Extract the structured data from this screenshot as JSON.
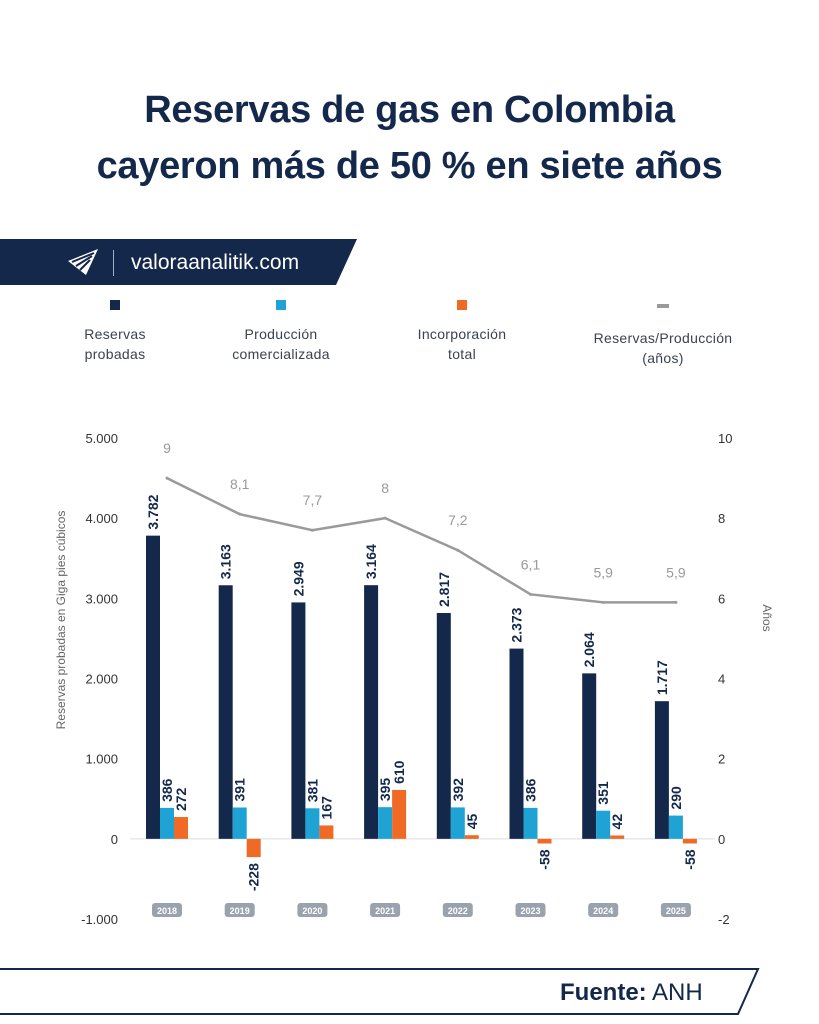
{
  "title": {
    "line1": "Reservas de gas en Colombia",
    "line2": "cayeron más de 50 % en siete años"
  },
  "brand": {
    "text": "valoraanalitik.com",
    "icon": "paper-plane-logo-icon"
  },
  "source": {
    "label": "Fuente:",
    "value": "ANH"
  },
  "colors": {
    "reservas": "#13284a",
    "produccion": "#1fa3d4",
    "incorporacion": "#ef6a24",
    "ratio": "#9a9a9a",
    "title": "#13284a"
  },
  "legend": [
    {
      "key": "reservas",
      "line1": "Reservas",
      "line2": "probadas"
    },
    {
      "key": "produccion",
      "line1": "Producción",
      "line2": "comercializada"
    },
    {
      "key": "incorporacion",
      "line1": "Incorporación",
      "line2": "total"
    },
    {
      "key": "ratio",
      "line1": "Reservas/Producción",
      "line2": "(años)"
    }
  ],
  "chart_data": {
    "type": "bar",
    "categories": [
      "2018",
      "2019",
      "2020",
      "2021",
      "2022",
      "2023",
      "2024",
      "2025"
    ],
    "series": [
      {
        "name": "Reservas probadas",
        "values": [
          3782,
          3163,
          2949,
          3164,
          2817,
          2373,
          2064,
          1717
        ],
        "labels": [
          "3.782",
          "3.163",
          "2.949",
          "3.164",
          "2.817",
          "2.373",
          "2.064",
          "1.717"
        ]
      },
      {
        "name": "Producción comercializada",
        "values": [
          386,
          391,
          381,
          395,
          392,
          386,
          351,
          290
        ],
        "labels": [
          "386",
          "391",
          "381",
          "395",
          "392",
          "386",
          "351",
          "290"
        ]
      },
      {
        "name": "Incorporación total",
        "values": [
          272,
          -228,
          167,
          610,
          45,
          -58,
          42,
          -58
        ],
        "labels": [
          "272",
          "-228",
          "167",
          "610",
          "45",
          "-58",
          "42",
          "-58"
        ]
      },
      {
        "name": "Reservas/Producción (años)",
        "type": "line",
        "axis": "right",
        "values": [
          9,
          8.1,
          7.7,
          8,
          7.2,
          6.1,
          5.9,
          5.9
        ],
        "labels": [
          "9",
          "8,1",
          "7,7",
          "8",
          "7,2",
          "6,1",
          "5,9",
          "5,9"
        ]
      }
    ],
    "ylabel": "Reservas probadas en Giga pies cúbicos",
    "y2label": "Años",
    "ylim": [
      -1000,
      5000
    ],
    "y2lim": [
      -2,
      10
    ],
    "yticks": [
      "-1.000",
      "0",
      "1.000",
      "2.000",
      "3.000",
      "4.000",
      "5.000"
    ],
    "y2ticks": [
      "-2",
      "0",
      "2",
      "4",
      "6",
      "8",
      "10"
    ],
    "grid": false
  }
}
